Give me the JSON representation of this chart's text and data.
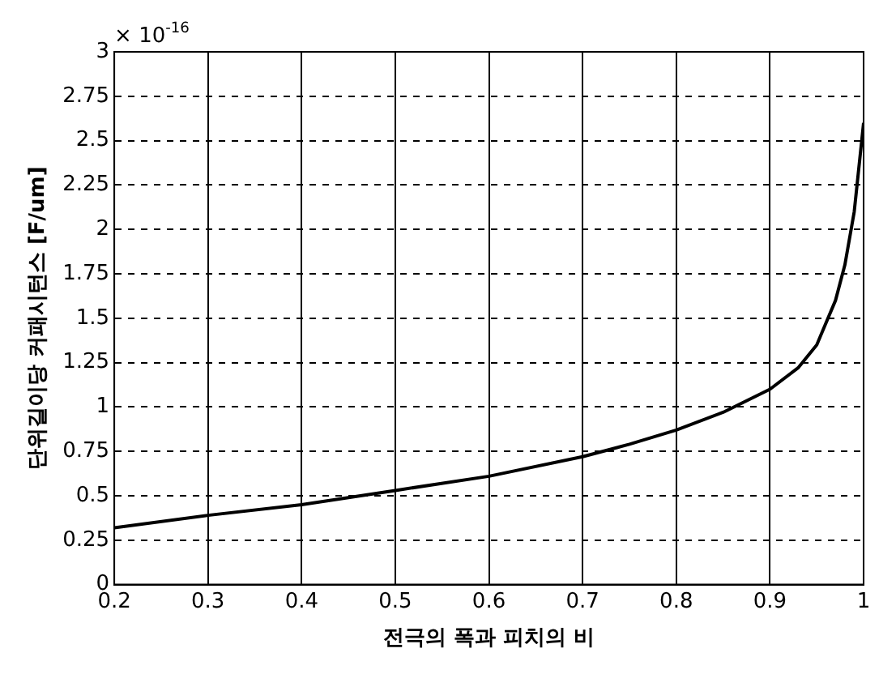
{
  "chart_data": {
    "type": "line",
    "xlabel": "전극의 폭과 피치의 비",
    "ylabel": "단위길이당 커패시턴스 [F/um]",
    "annotations": [
      "× 10$^{-16}$"
    ],
    "x": [
      0.2,
      0.3,
      0.4,
      0.5,
      0.6,
      0.7,
      0.75,
      0.8,
      0.85,
      0.9,
      0.93,
      0.95,
      0.97,
      0.98,
      0.99,
      0.995,
      1.0
    ],
    "series": [
      {
        "color": "#000000",
        "values": [
          0.32,
          0.39,
          0.45,
          0.53,
          0.61,
          0.72,
          0.79,
          0.87,
          0.97,
          1.1,
          1.22,
          1.35,
          1.6,
          1.8,
          2.1,
          2.35,
          2.6
        ]
      }
    ],
    "xlim": [
      0.2,
      1
    ],
    "xticks": [
      0.2,
      0.3,
      0.4,
      0.5,
      0.6,
      0.7,
      0.8,
      0.9,
      1
    ],
    "ylim": [
      0,
      3
    ],
    "yticks": [
      0,
      0.25,
      0.5,
      0.75,
      1,
      1.25,
      1.5,
      1.75,
      2,
      2.25,
      2.5,
      2.75,
      3
    ],
    "grid": true,
    "line_style": "solid",
    "marker": "none"
  }
}
